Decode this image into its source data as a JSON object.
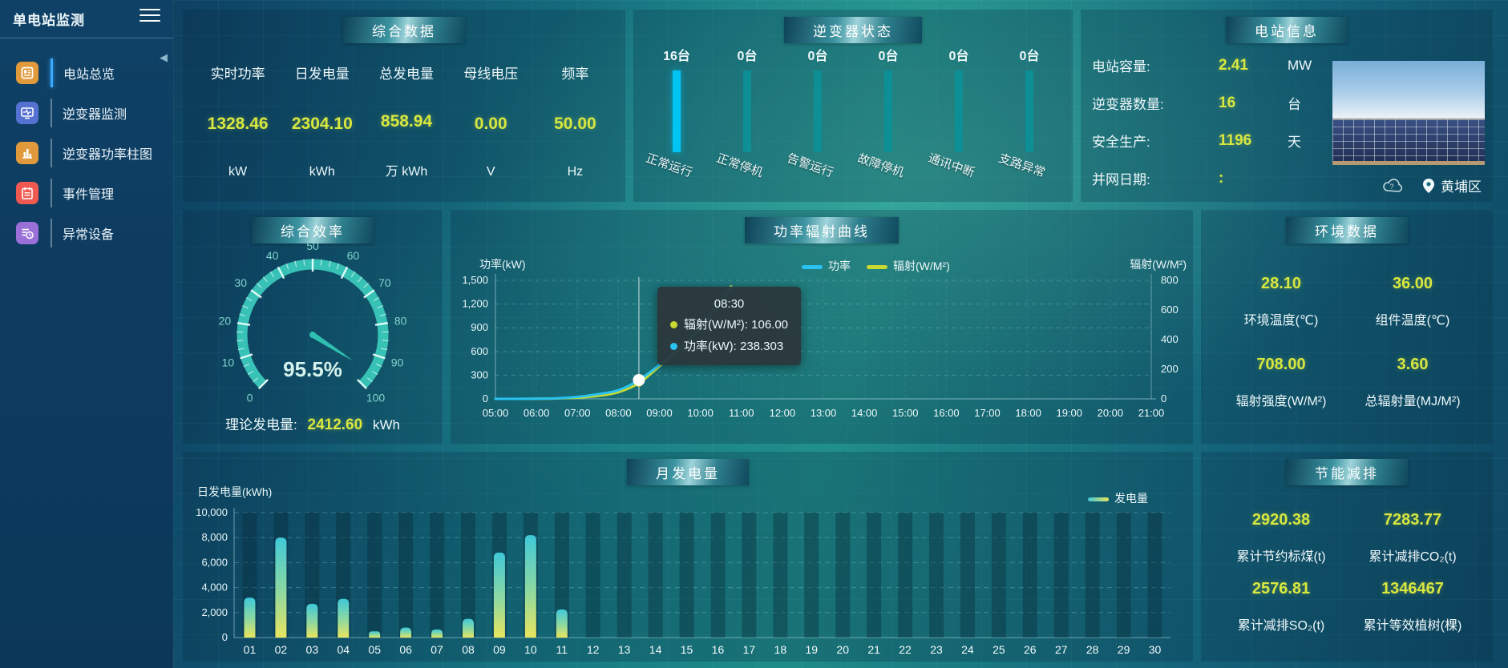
{
  "app": {
    "title": "单电站监测"
  },
  "sidebar": {
    "items": [
      {
        "label": "电站总览",
        "icon": "station-overview-icon",
        "color": "#e09a3c",
        "active": true
      },
      {
        "label": "逆变器监测",
        "icon": "inverter-monitor-icon",
        "color": "#5572d2",
        "active": false
      },
      {
        "label": "逆变器功率柱图",
        "icon": "inverter-power-bars-icon",
        "color": "#e09a3c",
        "active": false
      },
      {
        "label": "事件管理",
        "icon": "event-management-icon",
        "color": "#ef5950",
        "active": false
      },
      {
        "label": "异常设备",
        "icon": "abnormal-device-icon",
        "color": "#9a6fd8",
        "active": false
      }
    ]
  },
  "summary": {
    "title": "综合数据",
    "metrics": [
      {
        "label": "实时功率",
        "value": "1328.46",
        "unit": "kW"
      },
      {
        "label": "日发电量",
        "value": "2304.10",
        "unit": "kWh"
      },
      {
        "label": "总发电量",
        "value": "858.94",
        "unit": "万 kWh"
      },
      {
        "label": "母线电压",
        "value": "0.00",
        "unit": "V"
      },
      {
        "label": "频率",
        "value": "50.00",
        "unit": "Hz"
      }
    ]
  },
  "inverter_status": {
    "title": "逆变器状态",
    "statuses": [
      {
        "label": "正常运行",
        "count": "16台",
        "highlight": true
      },
      {
        "label": "正常停机",
        "count": "0台",
        "highlight": false
      },
      {
        "label": "告警运行",
        "count": "0台",
        "highlight": false
      },
      {
        "label": "故障停机",
        "count": "0台",
        "highlight": false
      },
      {
        "label": "通讯中断",
        "count": "0台",
        "highlight": false
      },
      {
        "label": "支路异常",
        "count": "0台",
        "highlight": false
      }
    ]
  },
  "station_info": {
    "title": "电站信息",
    "rows": [
      {
        "label": "电站容量:",
        "value": "2.41",
        "unit": "MW"
      },
      {
        "label": "逆变器数量:",
        "value": "16",
        "unit": "台"
      },
      {
        "label": "安全生产:",
        "value": "1196",
        "unit": "天"
      },
      {
        "label": "并网日期:",
        "value": ":",
        "unit": ""
      }
    ],
    "location": "黄埔区"
  },
  "efficiency": {
    "title": "综合效率",
    "footer_label": "理论发电量:",
    "footer_value": "2412.60",
    "footer_unit": "kWh"
  },
  "power_curve": {
    "title": "功率辐射曲线",
    "tooltip": {
      "time": "08:30",
      "rows": [
        {
          "color": "#c8d930",
          "text": "辐射(W/M²): 106.00"
        },
        {
          "color": "#28c3f0",
          "text": "功率(kW): 238.303"
        }
      ]
    }
  },
  "environment": {
    "title": "环境数据",
    "metrics": [
      {
        "value": "28.10",
        "label": "环境温度(℃)"
      },
      {
        "value": "36.00",
        "label": "组件温度(℃)"
      },
      {
        "value": "708.00",
        "label": "辐射强度(W/M²)"
      },
      {
        "value": "3.60",
        "label": "总辐射量(MJ/M²)"
      }
    ]
  },
  "monthly": {
    "title": "月发电量"
  },
  "savings": {
    "title": "节能减排",
    "metrics": [
      {
        "value": "2920.38",
        "label": "累计节约标煤(t)"
      },
      {
        "value": "7283.77",
        "label": "累计减排CO₂(t)"
      },
      {
        "value": "2576.81",
        "label": "累计减排SO₂(t)"
      },
      {
        "value": "1346467",
        "label": "累计等效植树(棵)"
      }
    ]
  },
  "chart_data": [
    {
      "id": "inverter_status",
      "type": "bar",
      "title": "逆变器状态",
      "categories": [
        "正常运行",
        "正常停机",
        "告警运行",
        "故障停机",
        "通讯中断",
        "支路异常"
      ],
      "values": [
        16,
        0,
        0,
        0,
        0,
        0
      ],
      "unit": "台",
      "colors": {
        "highlight": "#00c4f4",
        "normal": "#0d8f96"
      },
      "note": "equal-height status pillars with counts above bars"
    },
    {
      "id": "efficiency_gauge",
      "type": "gauge",
      "title": "综合效率",
      "min": 0,
      "max": 100,
      "value": 95.5,
      "unit": "%",
      "tick_step": 10,
      "arc_color": "#3bc8ba",
      "label_color": "#7fd4cc",
      "value_text": "95.5%"
    },
    {
      "id": "power_radiation",
      "type": "line",
      "title": "功率辐射曲线",
      "x_range": [
        5,
        21
      ],
      "x_ticks": [
        "05:00",
        "06:00",
        "07:00",
        "08:00",
        "09:00",
        "10:00",
        "11:00",
        "12:00",
        "13:00",
        "14:00",
        "15:00",
        "16:00",
        "17:00",
        "18:00",
        "19:00",
        "20:00",
        "21:00"
      ],
      "x_hours": [
        5,
        5.5,
        6,
        6.5,
        7,
        7.5,
        8,
        8.5,
        9,
        9.5,
        10,
        10.5,
        10.75
      ],
      "series": [
        {
          "name": "功率",
          "color": "#28c3f0",
          "axis": "left",
          "values": [
            0,
            0,
            3,
            8,
            25,
            60,
            110,
            238.303,
            430,
            640,
            900,
            1250,
            1410
          ]
        },
        {
          "name": "辐射(W/M²)",
          "color": "#c8d930",
          "axis": "right",
          "values": [
            0,
            0,
            1,
            3,
            8,
            20,
            45,
            106,
            220,
            340,
            480,
            660,
            760
          ]
        }
      ],
      "left_axis": {
        "label": "功率(kW)",
        "min": 0,
        "max": 1500,
        "step": 300
      },
      "right_axis": {
        "label": "辐射(W/M²)",
        "min": 0,
        "max": 800,
        "step": 200
      },
      "legend_position": "top-center-right",
      "grid": "dashed",
      "hover": {
        "x_hour": 8.5,
        "time": "08:30",
        "power": 238.303,
        "radiation": 106
      }
    },
    {
      "id": "monthly_generation",
      "type": "bar",
      "title": "月发电量",
      "ylabel": "日发电量(kWh)",
      "legend": "发电量",
      "categories": [
        "01",
        "02",
        "03",
        "04",
        "05",
        "06",
        "07",
        "08",
        "09",
        "10",
        "11",
        "12",
        "13",
        "14",
        "15",
        "16",
        "17",
        "18",
        "19",
        "20",
        "21",
        "22",
        "23",
        "24",
        "25",
        "26",
        "27",
        "28",
        "29",
        "30"
      ],
      "values": [
        3200,
        8000,
        2700,
        3100,
        500,
        800,
        650,
        1500,
        6800,
        8200,
        2250,
        0,
        0,
        0,
        0,
        0,
        0,
        0,
        0,
        0,
        0,
        0,
        0,
        0,
        0,
        0,
        0,
        0,
        0,
        0
      ],
      "ylim": [
        0,
        10000
      ],
      "y_step": 2000,
      "bar_gradient": [
        "#3fc8d8",
        "#8fd9a0",
        "#e8e55e"
      ],
      "grid": "dashed"
    }
  ]
}
